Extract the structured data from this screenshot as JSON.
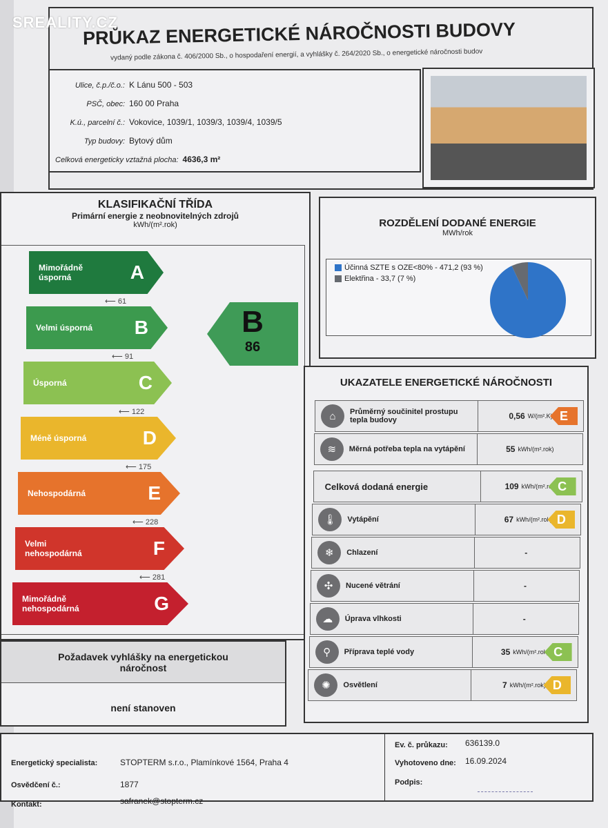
{
  "watermark": "SREALITY.CZ",
  "header": {
    "title": "PRŮKAZ ENERGETICKÉ NÁROČNOSTI BUDOVY",
    "subtitle": "vydaný podle zákona č. 406/2000 Sb., o hospodaření energií, a vyhlášky č. 264/2020 Sb., o energetické náročnosti budov"
  },
  "address": [
    {
      "label": "Ulice, č.p./č.o.:",
      "value": "K Lánu 500 - 503"
    },
    {
      "label": "PSČ, obec:",
      "value": "160 00 Praha"
    },
    {
      "label": "K.ú., parcelní č.:",
      "value": "Vokovice, 1039/1, 1039/3, 1039/4, 1039/5"
    },
    {
      "label": "Typ budovy:",
      "value": "Bytový dům"
    },
    {
      "label": "Celková energeticky vztažná plocha:",
      "value": "4636,3 m²"
    }
  ],
  "classification": {
    "title": "KLASIFIKAČNÍ TŘÍDA",
    "subtitle": "Primární energie z neobnovitelných zdrojů",
    "unit": "kWh/(m².rok)",
    "classes": [
      {
        "letter": "A",
        "label": "Mimořádně úsporná",
        "limit": "61",
        "color": "#1f7a3e"
      },
      {
        "letter": "B",
        "label": "Velmi úsporná",
        "limit": "91",
        "color": "#3c9a4e"
      },
      {
        "letter": "C",
        "label": "Úsporná",
        "limit": "122",
        "color": "#8cc152"
      },
      {
        "letter": "D",
        "label": "Méně úsporná",
        "limit": "175",
        "color": "#eab62c"
      },
      {
        "letter": "E",
        "label": "Nehospodárná",
        "limit": "228",
        "color": "#e6732c"
      },
      {
        "letter": "F",
        "label": "Velmi nehospodárná",
        "limit": "281",
        "color": "#d0352b"
      },
      {
        "letter": "G",
        "label": "Mimořádně nehospodárná",
        "limit": "",
        "color": "#c4202e"
      }
    ],
    "current": {
      "letter": "B",
      "value": "86"
    }
  },
  "requirement": {
    "title": "Požadavek vyhlášky na energetickou náročnost",
    "value": "není stanoven"
  },
  "distribution": {
    "title": "ROZDĚLENÍ DODANÉ ENERGIE",
    "unit": "MWh/rok",
    "items": [
      {
        "label": "Účinná SZTE s OZE<80% - 471,2 (93 %)",
        "value": 471.2,
        "percent": 93,
        "color": "#2f74c8"
      },
      {
        "label": "Elektřina - 33,7 (7 %)",
        "value": 33.7,
        "percent": 7,
        "color": "#666a70"
      }
    ]
  },
  "indicators": {
    "title": "UKAZATELE ENERGETICKÉ NÁROČNOSTI",
    "rows": [
      {
        "icon": "house-icon",
        "glyph": "⌂",
        "label": "Průměrný součinitel prostupu tepla budovy",
        "value": "0,56",
        "unit": "W/(m².K)",
        "class": "E",
        "color": "#e6732c"
      },
      {
        "icon": "heat-thermometer-icon",
        "glyph": "≋",
        "label": "Měrná potřeba tepla na vytápění",
        "value": "55",
        "unit": "kWh/(m².rok)",
        "class": "",
        "color": ""
      },
      {
        "icon": "",
        "glyph": "",
        "label": "Celková dodaná energie",
        "value": "109",
        "unit": "kWh/(m².rok)",
        "class": "C",
        "color": "#8cc152"
      },
      {
        "icon": "heating-icon",
        "glyph": "🌡",
        "label": "Vytápění",
        "value": "67",
        "unit": "kWh/(m².rok)",
        "class": "D",
        "color": "#eab62c"
      },
      {
        "icon": "cooling-icon",
        "glyph": "❄",
        "label": "Chlazení",
        "value": "-",
        "unit": "",
        "class": "",
        "color": ""
      },
      {
        "icon": "fan-icon",
        "glyph": "✣",
        "label": "Nucené větrání",
        "value": "-",
        "unit": "",
        "class": "",
        "color": ""
      },
      {
        "icon": "humidity-icon",
        "glyph": "☁",
        "label": "Úprava vlhkosti",
        "value": "-",
        "unit": "",
        "class": "",
        "color": ""
      },
      {
        "icon": "tap-icon",
        "glyph": "⚲",
        "label": "Příprava teplé vody",
        "value": "35",
        "unit": "kWh/(m².rok)",
        "class": "C",
        "color": "#8cc152"
      },
      {
        "icon": "bulb-icon",
        "glyph": "✺",
        "label": "Osvětlení",
        "value": "7",
        "unit": "kWh/(m².rok)",
        "class": "D",
        "color": "#eab62c"
      }
    ]
  },
  "footer": {
    "specialist_label": "Energetický specialista:",
    "specialist": "STOPTERM s.r.o., Plamínkové 1564, Praha 4",
    "cert_label": "Osvědčení č.:",
    "cert": "1877",
    "contact_label": "Kontakt:",
    "contact": "safranek@stopterm.cz",
    "ev_label": "Ev. č. průkazu:",
    "ev": "636139.0",
    "date_label": "Vyhotoveno dne:",
    "date": "16.09.2024",
    "sign_label": "Podpis:"
  }
}
